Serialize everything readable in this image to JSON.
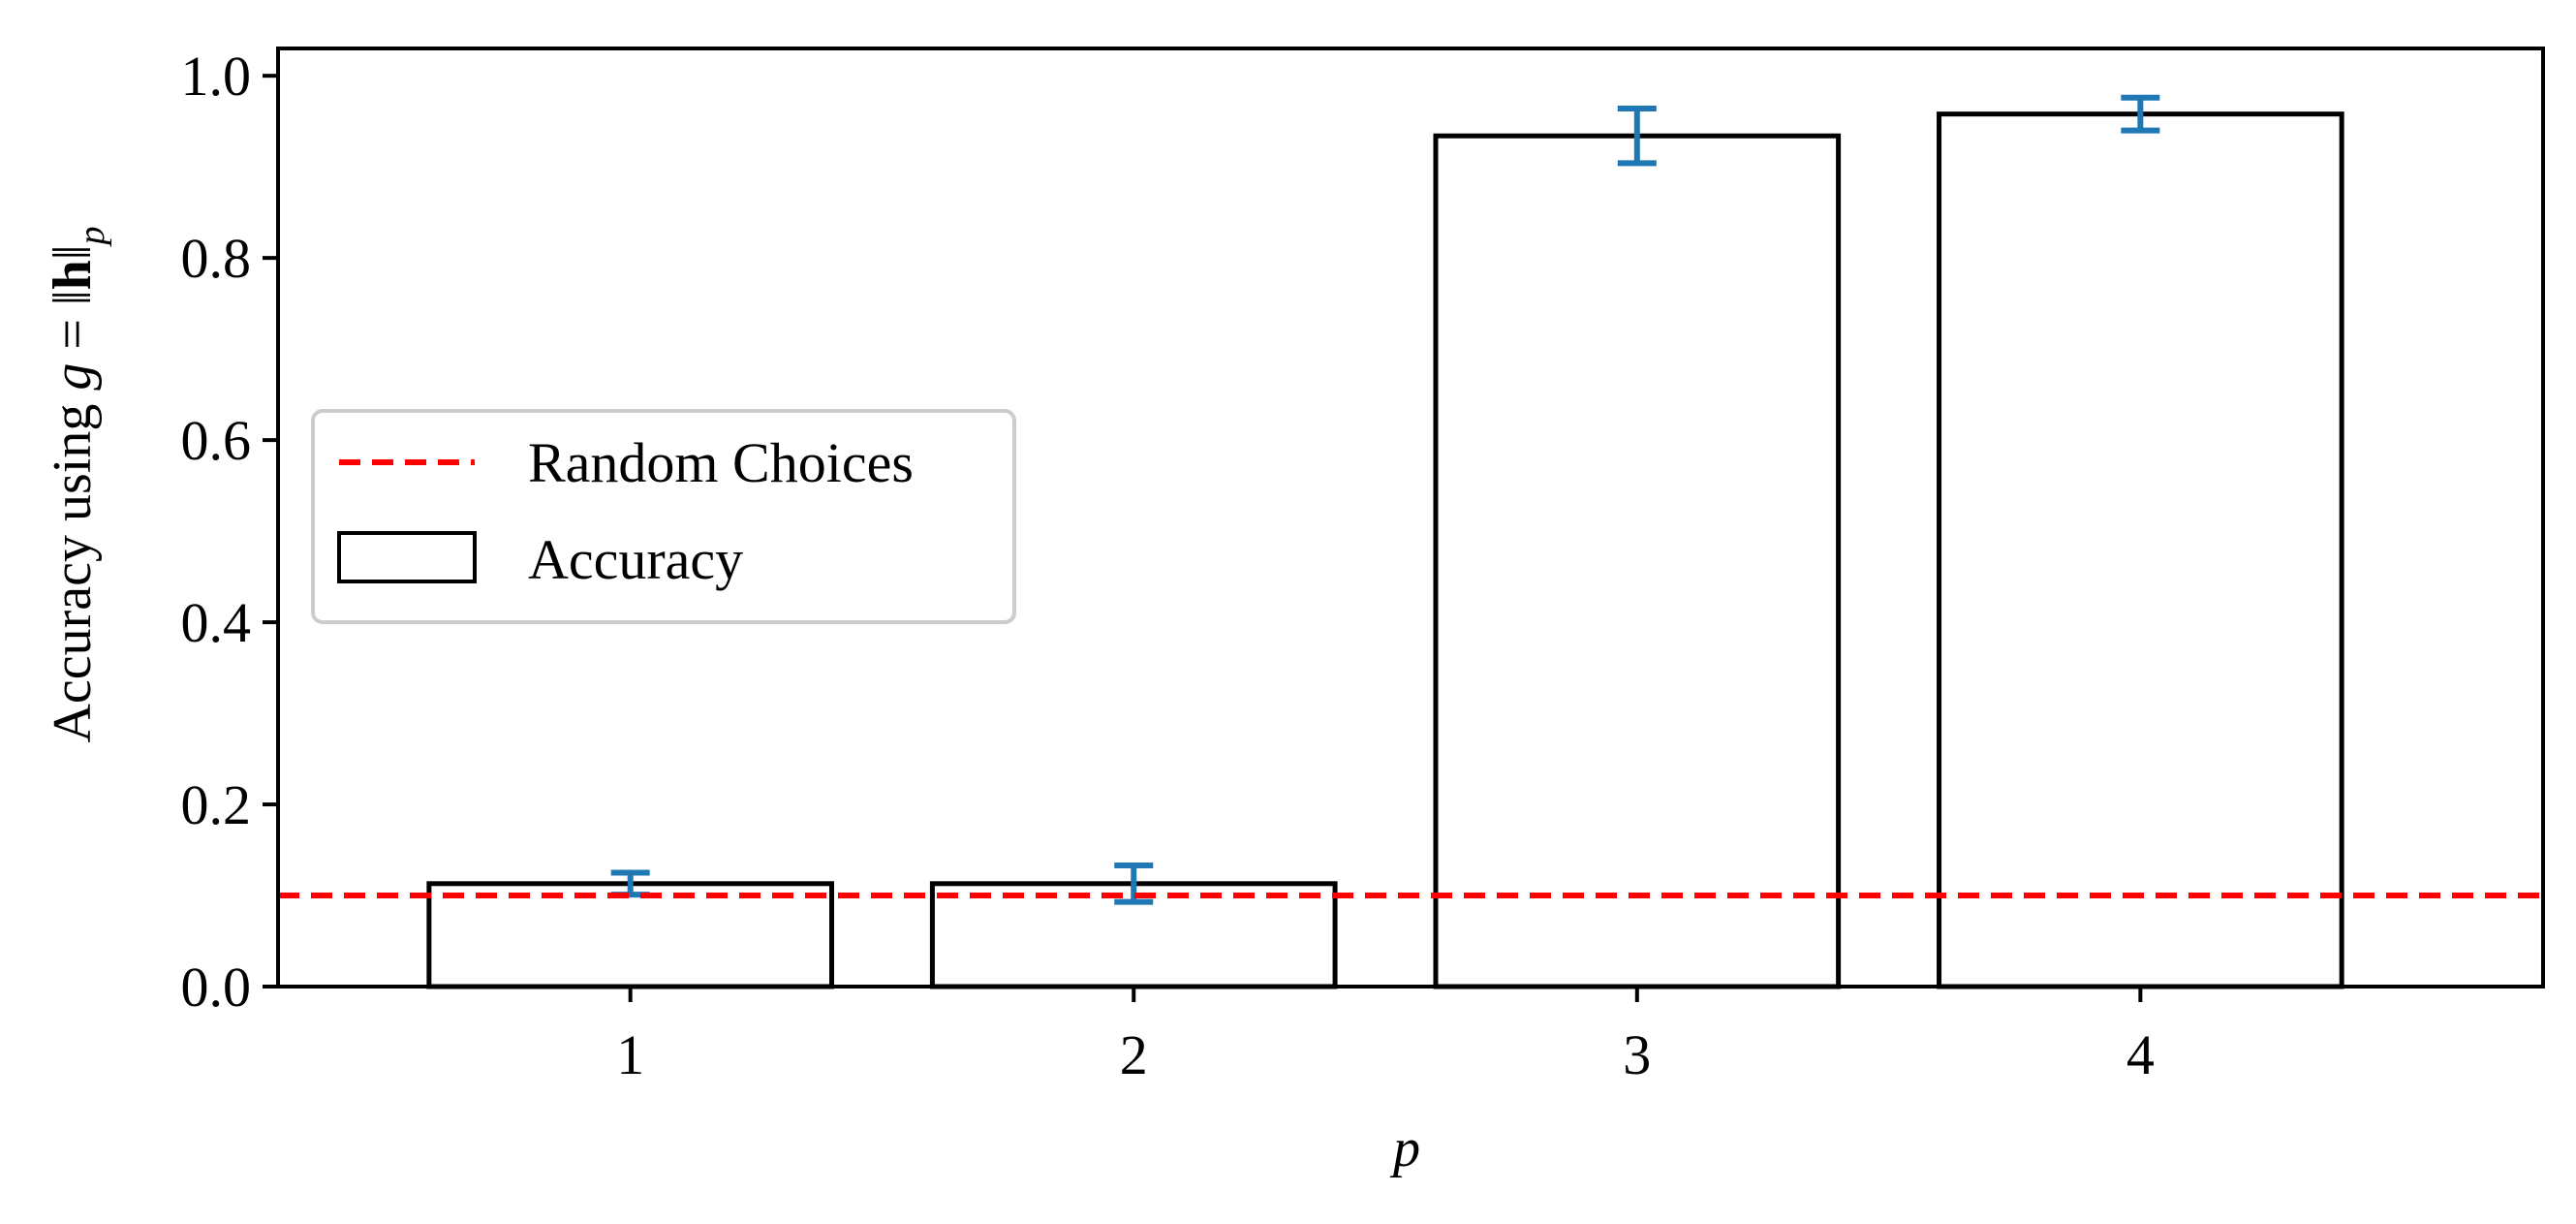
{
  "chart_data": {
    "type": "bar",
    "title": "",
    "xlabel": "p",
    "ylabel": {
      "prefix": "Accuracy using ",
      "var": "g",
      "equals": " = ",
      "norm_left": "‖",
      "norm_var": "h",
      "norm_right": "‖",
      "sub": "p"
    },
    "categories": [
      "1",
      "2",
      "3",
      "4"
    ],
    "x": [
      1,
      2,
      3,
      4
    ],
    "values": [
      0.113,
      0.113,
      0.934,
      0.958
    ],
    "errors": [
      0.012,
      0.02,
      0.03,
      0.018
    ],
    "xlim": [
      0.3,
      4.8
    ],
    "ylim": [
      0,
      1.03
    ],
    "yticks": [
      0.0,
      0.2,
      0.4,
      0.6,
      0.8,
      1.0
    ],
    "ytick_labels": [
      "0.0",
      "0.2",
      "0.4",
      "0.6",
      "0.8",
      "1.0"
    ],
    "reference_line": {
      "label": "Random Choices",
      "y": 0.1,
      "color": "#ff0000",
      "style": "dashed"
    },
    "bar_series_label": "Accuracy",
    "bar_fill": "#ffffff",
    "bar_edge": "#000000",
    "errorbar_color": "#1f77b4",
    "grid": false,
    "legend": {
      "placement": "center-left",
      "entries": [
        {
          "label": "Random Choices",
          "kind": "dashed-line"
        },
        {
          "label": "Accuracy",
          "kind": "bar-patch"
        }
      ]
    }
  }
}
